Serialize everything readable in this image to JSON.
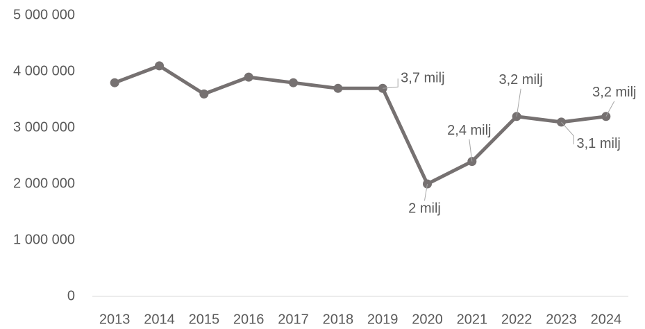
{
  "chart_data": {
    "type": "line",
    "categories": [
      "2013",
      "2014",
      "2015",
      "2016",
      "2017",
      "2018",
      "2019",
      "2020",
      "2021",
      "2022",
      "2023",
      "2024"
    ],
    "series": [
      {
        "color": "#767171",
        "values": [
          3800000,
          4100000,
          3600000,
          3900000,
          3800000,
          3700000,
          3700000,
          2000000,
          2400000,
          3200000,
          3100000,
          3200000
        ],
        "value_labels": [
          null,
          null,
          null,
          null,
          null,
          null,
          "3,7 milj",
          "2 milj",
          "2,4 milj",
          "3,2 milj",
          "3,1 milj",
          "3,2 milj"
        ]
      }
    ],
    "ylim": [
      0,
      5000000
    ],
    "yticks": [
      0,
      {
        "value": 1000000,
        "label": "1 000 000"
      },
      {
        "value": 2000000,
        "label": "2 000 000"
      },
      {
        "value": 3000000,
        "label": "3 000 000"
      },
      {
        "value": 4000000,
        "label": "4 000 000"
      },
      {
        "value": 5000000,
        "label": "5 000 000"
      }
    ],
    "grid": false
  }
}
